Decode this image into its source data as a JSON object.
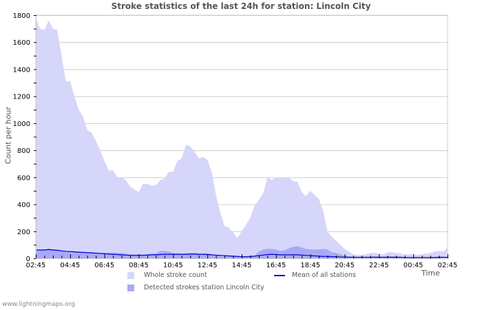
{
  "chart_data": {
    "type": "area",
    "title": "Stroke statistics of the last 24h for station: Lincoln City",
    "xlabel": "Time",
    "ylabel": "Count per hour",
    "ylim": [
      0,
      1800
    ],
    "yticks": [
      0,
      200,
      400,
      600,
      800,
      1000,
      1200,
      1400,
      1600,
      1800
    ],
    "xtick_labels": [
      "02:45",
      "04:45",
      "06:45",
      "08:45",
      "10:45",
      "12:45",
      "14:45",
      "16:45",
      "18:45",
      "20:45",
      "22:45",
      "00:45",
      "02:45"
    ],
    "grid": true,
    "legend_position": "bottom",
    "series": [
      {
        "name": "Whole stroke count",
        "type": "area",
        "color": "#d6d6fb",
        "values": [
          1780,
          1700,
          1690,
          1760,
          1700,
          1690,
          1500,
          1310,
          1310,
          1200,
          1100,
          1050,
          950,
          930,
          870,
          800,
          720,
          650,
          650,
          600,
          600,
          580,
          530,
          510,
          490,
          550,
          550,
          540,
          540,
          580,
          590,
          640,
          640,
          720,
          740,
          840,
          830,
          790,
          740,
          750,
          730,
          640,
          470,
          340,
          240,
          230,
          190,
          150,
          200,
          250,
          300,
          390,
          430,
          480,
          600,
          580,
          600,
          600,
          590,
          600,
          570,
          570,
          490,
          460,
          500,
          470,
          440,
          350,
          200,
          160,
          130,
          100,
          70,
          50,
          30,
          25,
          25,
          30,
          40,
          40,
          35,
          30,
          45,
          45,
          40,
          35,
          30,
          30,
          30,
          25,
          30,
          35,
          40,
          50,
          55,
          50,
          80
        ]
      },
      {
        "name": "Detected strokes station Lincoln City",
        "type": "area",
        "color": "#a9a9fa",
        "values": [
          65,
          65,
          65,
          70,
          68,
          65,
          60,
          55,
          55,
          52,
          50,
          48,
          45,
          45,
          45,
          42,
          42,
          42,
          42,
          40,
          40,
          35,
          32,
          30,
          30,
          30,
          32,
          35,
          35,
          55,
          55,
          50,
          40,
          38,
          35,
          38,
          38,
          40,
          35,
          35,
          38,
          30,
          25,
          22,
          18,
          15,
          14,
          12,
          10,
          12,
          15,
          20,
          50,
          65,
          70,
          70,
          65,
          55,
          60,
          75,
          85,
          90,
          80,
          70,
          65,
          65,
          65,
          70,
          65,
          45,
          40,
          30,
          20,
          15,
          12,
          10,
          10,
          10,
          12,
          15,
          14,
          12,
          15,
          15,
          14,
          12,
          10,
          8,
          8,
          6,
          6,
          8,
          10,
          12,
          12,
          10,
          10
        ]
      },
      {
        "name": "Mean of all stations",
        "type": "line",
        "color": "#0000cc",
        "values": [
          62,
          62,
          62,
          65,
          62,
          60,
          55,
          52,
          50,
          48,
          46,
          44,
          42,
          40,
          38,
          36,
          34,
          32,
          30,
          28,
          26,
          24,
          22,
          22,
          22,
          22,
          24,
          26,
          26,
          28,
          30,
          30,
          30,
          30,
          30,
          30,
          32,
          32,
          30,
          30,
          28,
          26,
          24,
          22,
          20,
          18,
          16,
          14,
          12,
          12,
          14,
          16,
          20,
          24,
          28,
          30,
          28,
          26,
          26,
          26,
          26,
          26,
          24,
          22,
          20,
          18,
          16,
          14,
          14,
          12,
          12,
          10,
          10,
          8,
          8,
          8,
          8,
          8,
          8,
          8,
          8,
          8,
          8,
          8,
          8,
          8,
          6,
          6,
          6,
          6,
          6,
          6,
          6,
          6,
          8,
          8,
          8
        ]
      }
    ]
  },
  "page": {
    "title": "Stroke statistics of the last 24h for station: Lincoln City",
    "y_axis_label": "Count per hour",
    "x_axis_label": "Time",
    "footer": "www.lightningmaps.org"
  },
  "legend": {
    "items": [
      {
        "label": "Whole stroke count",
        "color": "#d6d6fb",
        "kind": "area"
      },
      {
        "label": "Mean of all stations",
        "color": "#0000cc",
        "kind": "line"
      },
      {
        "label": "Detected strokes station Lincoln City",
        "color": "#a9a9fa",
        "kind": "area"
      }
    ]
  }
}
